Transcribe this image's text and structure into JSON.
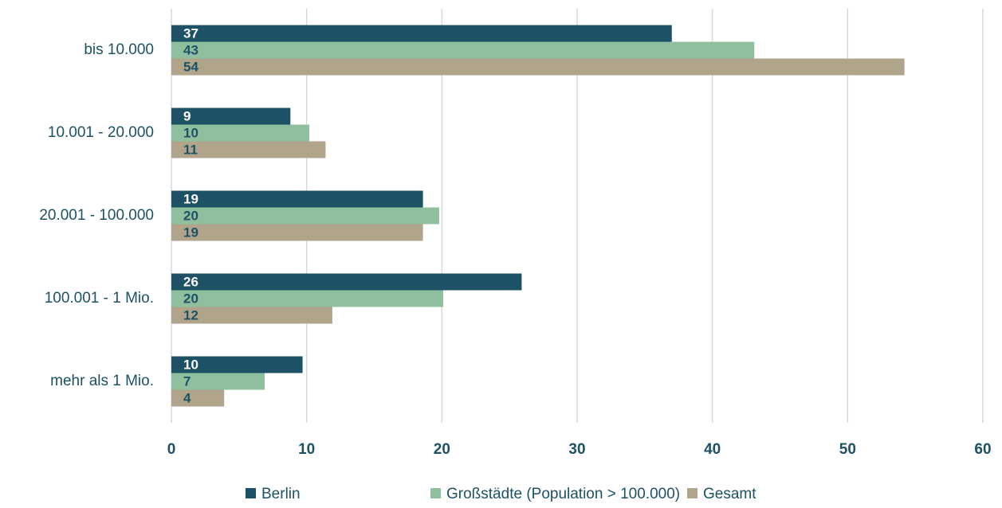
{
  "chart_data": {
    "type": "bar",
    "orientation": "horizontal",
    "categories": [
      "bis 10.000",
      "10.001 - 20.000",
      "20.001 - 100.000",
      "100.001 - 1 Mio.",
      "mehr als 1 Mio."
    ],
    "series": [
      {
        "name": "Berlin",
        "color": "#1d5166",
        "values": [
          37.0,
          8.8,
          18.6,
          25.9,
          9.7
        ],
        "value_labels": [
          "37",
          "9",
          "19",
          "26",
          "10"
        ]
      },
      {
        "name": "Großstädte (Population > 100.000)",
        "color": "#8fbf9f",
        "values": [
          43.1,
          10.2,
          19.8,
          20.1,
          6.9
        ],
        "value_labels": [
          "43",
          "10",
          "20",
          "20",
          "7"
        ]
      },
      {
        "name": "Gesamt",
        "color": "#b0a58a",
        "values": [
          54.2,
          11.4,
          18.6,
          11.9,
          3.9
        ],
        "value_labels": [
          "54",
          "11",
          "19",
          "12",
          "4"
        ]
      }
    ],
    "xlim": [
      0,
      60
    ],
    "xticks": [
      0,
      10,
      20,
      30,
      40,
      50,
      60
    ],
    "grid": true,
    "legend": "bottom"
  }
}
